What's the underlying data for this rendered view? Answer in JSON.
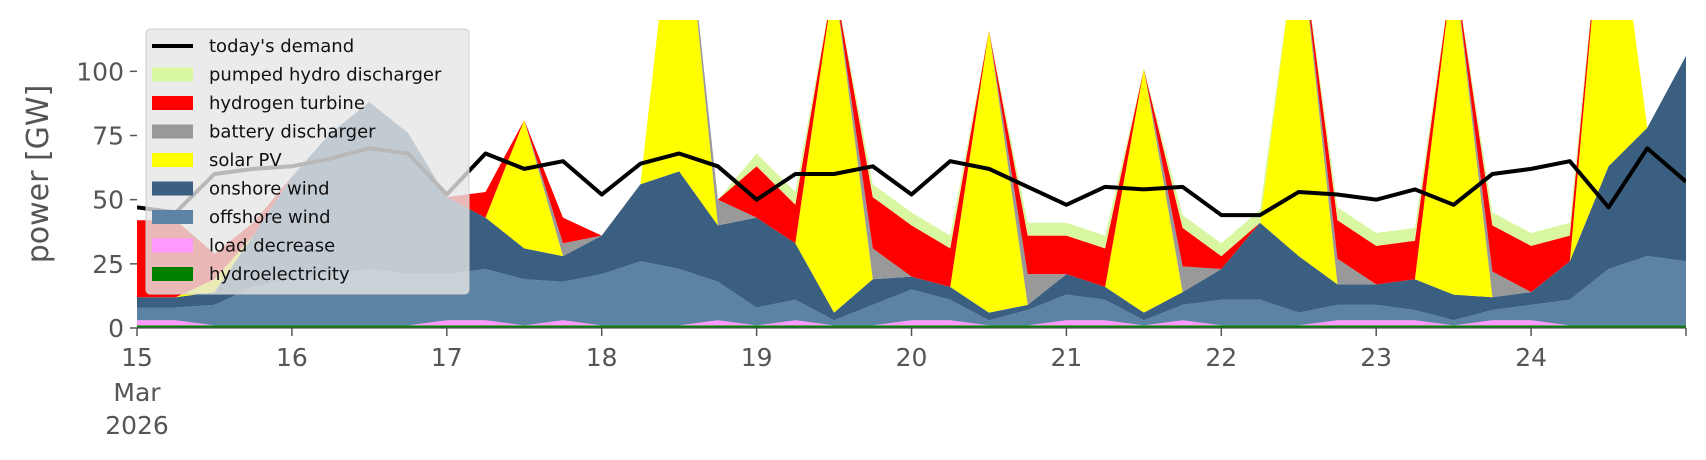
{
  "chart_data": {
    "type": "area",
    "ylabel": "power [GW]",
    "ylim": [
      0,
      120
    ],
    "xlim": [
      "2026-03-15",
      "2026-03-25"
    ],
    "y_ticks": [
      0,
      25,
      50,
      75,
      100
    ],
    "x_ticks": [
      {
        "date": "2026-03-15",
        "label": "15",
        "sub": [
          "Mar",
          "2026"
        ]
      },
      {
        "date": "2026-03-16",
        "label": "16"
      },
      {
        "date": "2026-03-17",
        "label": "17"
      },
      {
        "date": "2026-03-18",
        "label": "18"
      },
      {
        "date": "2026-03-19",
        "label": "19"
      },
      {
        "date": "2026-03-20",
        "label": "20"
      },
      {
        "date": "2026-03-21",
        "label": "21"
      },
      {
        "date": "2026-03-22",
        "label": "22"
      },
      {
        "date": "2026-03-23",
        "label": "23"
      },
      {
        "date": "2026-03-24",
        "label": "24"
      }
    ],
    "grid": false,
    "legend_position": "upper-left",
    "x": [
      "2026-03-15 00:00",
      "2026-03-15 06:00",
      "2026-03-15 12:00",
      "2026-03-15 18:00",
      "2026-03-16 00:00",
      "2026-03-16 06:00",
      "2026-03-16 12:00",
      "2026-03-16 18:00",
      "2026-03-17 00:00",
      "2026-03-17 06:00",
      "2026-03-17 12:00",
      "2026-03-17 18:00",
      "2026-03-18 00:00",
      "2026-03-18 06:00",
      "2026-03-18 12:00",
      "2026-03-18 18:00",
      "2026-03-19 00:00",
      "2026-03-19 06:00",
      "2026-03-19 12:00",
      "2026-03-19 18:00",
      "2026-03-20 00:00",
      "2026-03-20 06:00",
      "2026-03-20 12:00",
      "2026-03-20 18:00",
      "2026-03-21 00:00",
      "2026-03-21 06:00",
      "2026-03-21 12:00",
      "2026-03-21 18:00",
      "2026-03-22 00:00",
      "2026-03-22 06:00",
      "2026-03-22 12:00",
      "2026-03-22 18:00",
      "2026-03-23 00:00",
      "2026-03-23 06:00",
      "2026-03-23 12:00",
      "2026-03-23 18:00",
      "2026-03-24 00:00",
      "2026-03-24 06:00",
      "2026-03-24 12:00",
      "2026-03-24 18:00",
      "2026-03-25 00:00"
    ],
    "series": [
      {
        "name": "hydroelectricity",
        "color": "#008000",
        "values": [
          1,
          1,
          1,
          1,
          1,
          1,
          1,
          1,
          1,
          1,
          1,
          1,
          1,
          1,
          1,
          1,
          1,
          1,
          1,
          1,
          1,
          1,
          1,
          1,
          1,
          1,
          1,
          1,
          1,
          1,
          1,
          1,
          1,
          1,
          1,
          1,
          1,
          1,
          1,
          1,
          1
        ]
      },
      {
        "name": "load decrease",
        "color": "#ff99ff",
        "values": [
          2,
          2,
          0,
          0,
          0,
          0,
          0,
          0,
          2,
          2,
          0,
          2,
          0,
          0,
          0,
          2,
          0,
          2,
          0,
          0,
          2,
          2,
          0,
          0,
          2,
          2,
          0,
          2,
          0,
          0,
          0,
          2,
          2,
          2,
          0,
          2,
          2,
          0,
          0,
          0,
          0
        ]
      },
      {
        "name": "offshore wind",
        "color": "#5c82a4",
        "values": [
          5,
          5,
          8,
          15,
          18,
          20,
          22,
          20,
          18,
          20,
          18,
          15,
          20,
          25,
          22,
          15,
          7,
          8,
          2,
          8,
          12,
          8,
          2,
          6,
          10,
          8,
          2,
          6,
          10,
          10,
          5,
          6,
          6,
          4,
          2,
          4,
          6,
          10,
          22,
          27,
          25
        ]
      },
      {
        "name": "onshore wind",
        "color": "#3a5f80",
        "values": [
          4,
          4,
          5,
          20,
          40,
          55,
          65,
          55,
          30,
          20,
          12,
          10,
          15,
          30,
          38,
          22,
          35,
          22,
          3,
          10,
          5,
          5,
          3,
          2,
          8,
          5,
          3,
          5,
          12,
          30,
          22,
          8,
          8,
          12,
          10,
          5,
          5,
          15,
          40,
          50,
          80
        ]
      },
      {
        "name": "solar PV",
        "color": "#ffff00",
        "values": [
          0,
          0,
          5,
          0,
          0,
          0,
          0,
          0,
          0,
          0,
          50,
          0,
          0,
          0,
          130,
          0,
          0,
          0,
          130,
          0,
          0,
          0,
          110,
          0,
          0,
          0,
          95,
          0,
          0,
          0,
          130,
          0,
          0,
          0,
          130,
          0,
          0,
          0,
          130,
          0,
          0
        ]
      },
      {
        "name": "battery discharger",
        "color": "#999999",
        "values": [
          0,
          0,
          0,
          0,
          0,
          0,
          0,
          0,
          0,
          0,
          0,
          5,
          0,
          0,
          0,
          10,
          0,
          0,
          0,
          12,
          0,
          0,
          0,
          12,
          0,
          0,
          0,
          10,
          0,
          0,
          0,
          10,
          0,
          0,
          0,
          10,
          0,
          0,
          0,
          0,
          0
        ]
      },
      {
        "name": "hydrogen turbine",
        "color": "#ff0000",
        "values": [
          30,
          30,
          10,
          5,
          0,
          0,
          0,
          0,
          0,
          10,
          0,
          10,
          0,
          0,
          0,
          0,
          20,
          15,
          0,
          20,
          20,
          15,
          0,
          15,
          15,
          15,
          0,
          15,
          5,
          0,
          0,
          15,
          15,
          15,
          0,
          18,
          18,
          10,
          0,
          0,
          0
        ]
      },
      {
        "name": "pumped hydro discharger",
        "color": "#d9f7a0",
        "values": [
          0,
          0,
          0,
          0,
          0,
          0,
          0,
          0,
          0,
          0,
          0,
          0,
          0,
          0,
          0,
          0,
          5,
          5,
          0,
          5,
          5,
          5,
          0,
          5,
          5,
          5,
          0,
          5,
          5,
          5,
          0,
          5,
          5,
          5,
          0,
          5,
          5,
          5,
          0,
          0,
          0
        ]
      }
    ],
    "demand": {
      "name": "today's demand",
      "color": "#000000",
      "values": [
        47,
        45,
        60,
        62,
        63,
        66,
        70,
        68,
        52,
        68,
        62,
        65,
        52,
        64,
        68,
        63,
        50,
        60,
        60,
        63,
        52,
        65,
        62,
        55,
        48,
        55,
        54,
        55,
        44,
        44,
        53,
        52,
        50,
        54,
        48,
        60,
        62,
        65,
        47,
        70,
        57
      ]
    },
    "legend": [
      "today's demand",
      "pumped hydro discharger",
      "hydrogen turbine",
      "battery discharger",
      "solar PV",
      "onshore wind",
      "offshore wind",
      "load decrease",
      "hydroelectricity"
    ]
  }
}
